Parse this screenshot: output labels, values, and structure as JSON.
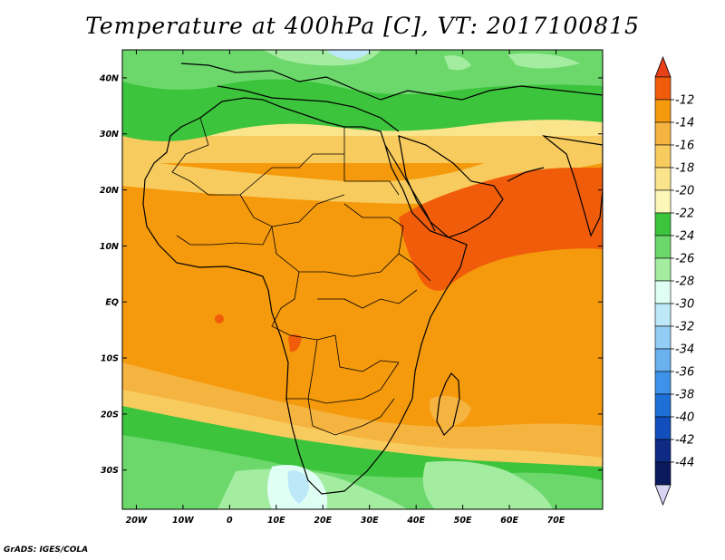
{
  "title": "Temperature at 400hPa [C], VT: 2017100815",
  "credit": "GrADS: IGES/COLA",
  "map": {
    "lon_range": [
      -23,
      80
    ],
    "lat_range": [
      -37,
      45
    ],
    "lat_ticks": [
      {
        "value": 40,
        "label": "40N"
      },
      {
        "value": 30,
        "label": "30N"
      },
      {
        "value": 20,
        "label": "20N"
      },
      {
        "value": 10,
        "label": "10N"
      },
      {
        "value": 0,
        "label": "EQ"
      },
      {
        "value": -10,
        "label": "10S"
      },
      {
        "value": -20,
        "label": "20S"
      },
      {
        "value": -30,
        "label": "30S"
      }
    ],
    "lon_ticks": [
      {
        "value": -20,
        "label": "20W"
      },
      {
        "value": -10,
        "label": "10W"
      },
      {
        "value": 0,
        "label": "0"
      },
      {
        "value": 10,
        "label": "10E"
      },
      {
        "value": 20,
        "label": "20E"
      },
      {
        "value": 30,
        "label": "30E"
      },
      {
        "value": 40,
        "label": "40E"
      },
      {
        "value": 50,
        "label": "50E"
      },
      {
        "value": 60,
        "label": "60E"
      },
      {
        "value": 70,
        "label": "70E"
      }
    ]
  },
  "colorbar": {
    "unit": "C",
    "labels": [
      "-12",
      "-14",
      "-16",
      "-18",
      "-20",
      "-22",
      "-24",
      "-26",
      "-28",
      "-30",
      "-32",
      "-34",
      "-36",
      "-38",
      "-40",
      "-42",
      "-44"
    ],
    "colors_top_to_bottom": [
      "#f05c0a",
      "#f59a0c",
      "#f5b340",
      "#f8cb5e",
      "#fae58c",
      "#fff7ba",
      "#3cc43c",
      "#6cd86c",
      "#a3eca0",
      "#e0fff4",
      "#bde8f8",
      "#92cdf5",
      "#69b1ef",
      "#3f92e9",
      "#1e6fd8",
      "#124fbd",
      "#0e2a85",
      "#0a1a5c"
    ],
    "top_triangle_color": "#e8401a",
    "bottom_triangle_color": "#d8d4f4"
  }
}
